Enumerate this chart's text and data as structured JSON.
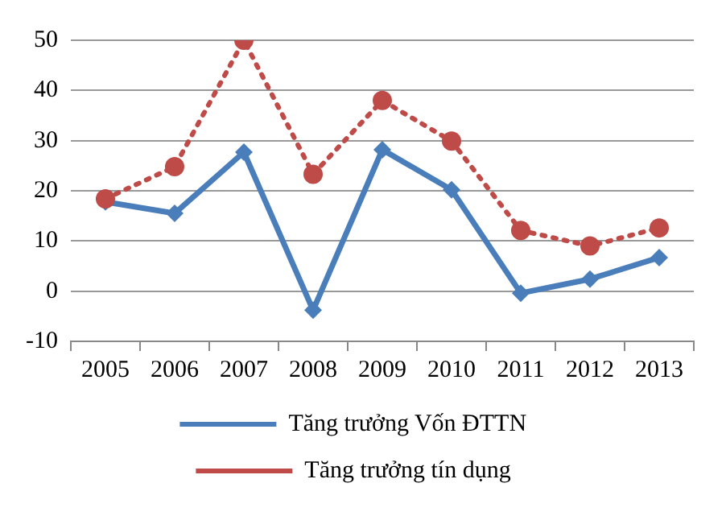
{
  "chart_data": {
    "type": "line",
    "categories": [
      "2005",
      "2006",
      "2007",
      "2008",
      "2009",
      "2010",
      "2011",
      "2012",
      "2013"
    ],
    "series": [
      {
        "name": "Tăng trưởng Vốn ĐTTN",
        "color": "#4a7ebb",
        "values": [
          17.8,
          15.5,
          27.7,
          -3.8,
          28.2,
          20.2,
          -0.4,
          2.4,
          6.7
        ],
        "marker": "diamond",
        "line_style": "solid"
      },
      {
        "name": "Tăng trưởng tín dụng",
        "color": "#be4b48",
        "values": [
          18.4,
          24.8,
          50,
          23.3,
          38,
          29.9,
          12.1,
          9,
          12.6
        ],
        "marker": "circle",
        "line_style": "dotted"
      }
    ],
    "ylim": [
      -10,
      50
    ],
    "yticks": [
      -10,
      0,
      10,
      20,
      30,
      40,
      50
    ],
    "grid": "y",
    "legend": "bottom"
  }
}
